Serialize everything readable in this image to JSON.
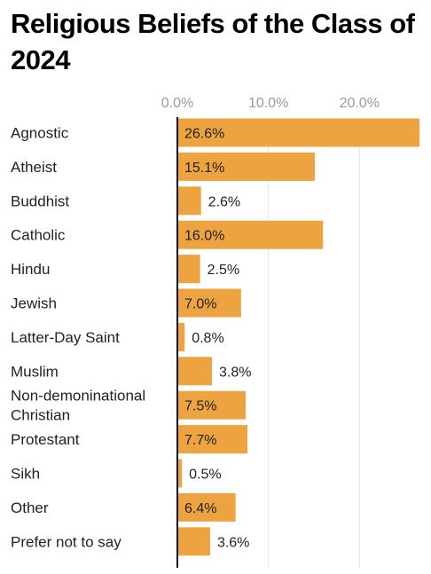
{
  "chart_data": {
    "type": "bar",
    "orientation": "horizontal",
    "title": "Religious Beliefs of the Class of 2024",
    "categories": [
      "Agnostic",
      "Atheist",
      "Buddhist",
      "Catholic",
      "Hindu",
      "Jewish",
      "Latter-Day Saint",
      "Muslim",
      "Non-demoninational Christian",
      "Protestant",
      "Sikh",
      "Other",
      "Prefer not to say"
    ],
    "category_lines": [
      [
        "Agnostic"
      ],
      [
        "Atheist"
      ],
      [
        "Buddhist"
      ],
      [
        "Catholic"
      ],
      [
        "Hindu"
      ],
      [
        "Jewish"
      ],
      [
        "Latter-Day Saint"
      ],
      [
        "Muslim"
      ],
      [
        "Non-demoninational",
        "Christian"
      ],
      [
        "Protestant"
      ],
      [
        "Sikh"
      ],
      [
        "Other"
      ],
      [
        "Prefer not to say"
      ]
    ],
    "values": [
      26.6,
      15.1,
      2.6,
      16.0,
      2.5,
      7.0,
      0.8,
      3.8,
      7.5,
      7.7,
      0.5,
      6.4,
      3.6
    ],
    "value_labels": [
      "26.6%",
      "15.1%",
      "2.6%",
      "16.0%",
      "2.5%",
      "7.0%",
      "0.8%",
      "3.8%",
      "7.5%",
      "7.7%",
      "0.5%",
      "6.4%",
      "3.6%"
    ],
    "x_ticks": [
      0,
      10,
      20
    ],
    "x_tick_labels": [
      "0.0%",
      "10.0%",
      "20.0%"
    ],
    "xlim": [
      0,
      26.6
    ],
    "xlabel": "",
    "ylabel": "",
    "grid": true,
    "legend": "none",
    "colors": {
      "bar": "#eda33f",
      "axis": "#111111",
      "grid": "#e3e3e3",
      "tick_text": "#999999",
      "label_text": "#222222"
    }
  }
}
